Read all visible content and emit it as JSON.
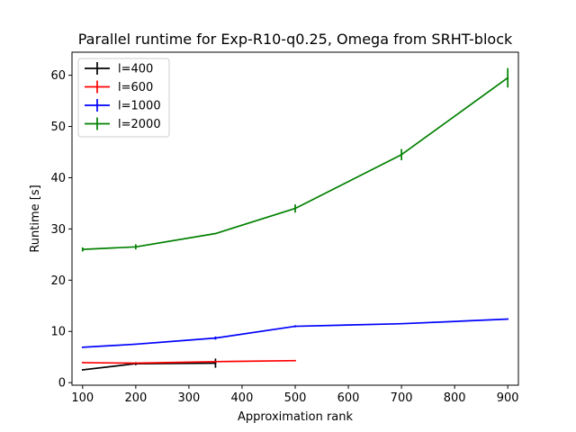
{
  "chart_data": {
    "type": "line",
    "title": "Parallel runtime for Exp-R10-q0.25, Omega from SRHT-block",
    "xlabel": "Approximation rank",
    "ylabel": "Runtime [s]",
    "xlim": [
      80,
      920
    ],
    "ylim": [
      -0.5,
      64.5
    ],
    "xticks": [
      100,
      200,
      300,
      400,
      500,
      600,
      700,
      800,
      900
    ],
    "yticks": [
      0,
      10,
      20,
      30,
      40,
      50,
      60
    ],
    "legend_position": "top-left",
    "grid": false,
    "series": [
      {
        "name": "l=400",
        "color": "#000000",
        "x": [
          100,
          200,
          350
        ],
        "y": [
          2.5,
          3.7,
          3.8
        ],
        "yerr": [
          0.05,
          0.3,
          0.9
        ]
      },
      {
        "name": "l=600",
        "color": "#ff0000",
        "x": [
          100,
          200,
          350,
          500
        ],
        "y": [
          3.9,
          3.8,
          4.1,
          4.3
        ],
        "yerr": [
          0.05,
          0.05,
          0.05,
          0.05
        ]
      },
      {
        "name": "l=1000",
        "color": "#0000ff",
        "x": [
          100,
          200,
          350,
          500,
          700,
          900
        ],
        "y": [
          6.9,
          7.5,
          8.7,
          11.0,
          11.5,
          12.4
        ],
        "yerr": [
          0.05,
          0.1,
          0.3,
          0.2,
          0.05,
          0.05
        ]
      },
      {
        "name": "l=2000",
        "color": "#008000",
        "x": [
          100,
          200,
          350,
          500,
          700,
          900
        ],
        "y": [
          26.0,
          26.5,
          29.1,
          34.0,
          44.5,
          59.5
        ],
        "yerr": [
          0.4,
          0.5,
          0.1,
          0.8,
          1.1,
          1.9
        ]
      }
    ]
  }
}
